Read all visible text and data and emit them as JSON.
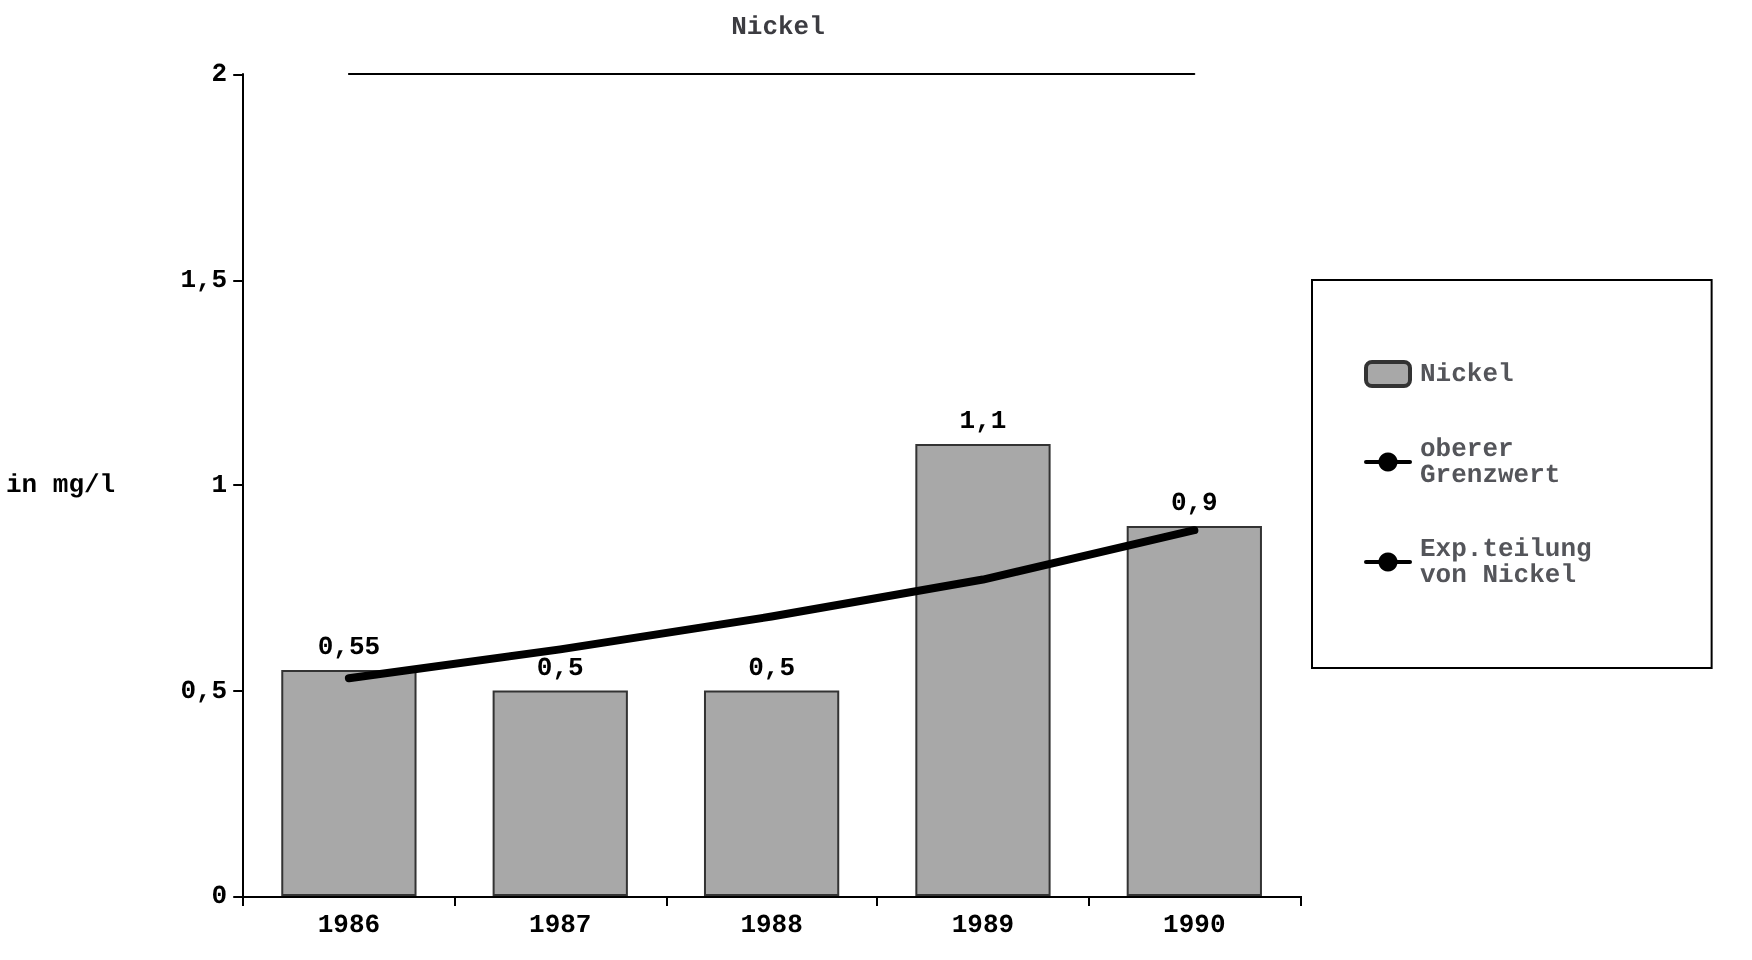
{
  "chart_data": {
    "type": "bar",
    "title": "Nickel",
    "ylabel": "in mg/l",
    "categories": [
      "1986",
      "1987",
      "1988",
      "1989",
      "1990"
    ],
    "series": [
      {
        "name": "Nickel",
        "color": "#a8a8a8",
        "values": [
          0.55,
          0.5,
          0.5,
          1.1,
          0.9
        ],
        "value_labels": [
          "0,55",
          "0,5",
          "0,5",
          "1,1",
          "0,9"
        ]
      },
      {
        "name": "oberer\nGrenzwert",
        "type": "line",
        "color": "#000000",
        "values": [
          2,
          2,
          2,
          2,
          2
        ]
      },
      {
        "name": "Exp.teilung\nvon Nickel",
        "type": "line",
        "color": "#000000",
        "values": [
          0.53,
          0.6,
          0.68,
          0.77,
          0.89
        ]
      }
    ],
    "ylim": [
      0,
      2
    ],
    "yticks": [
      0,
      {
        "value": 0.5,
        "label": "0,5"
      },
      1,
      {
        "value": 1.5,
        "label": "1,5"
      },
      2
    ],
    "grid": false,
    "legend": "right",
    "marker": "none"
  }
}
